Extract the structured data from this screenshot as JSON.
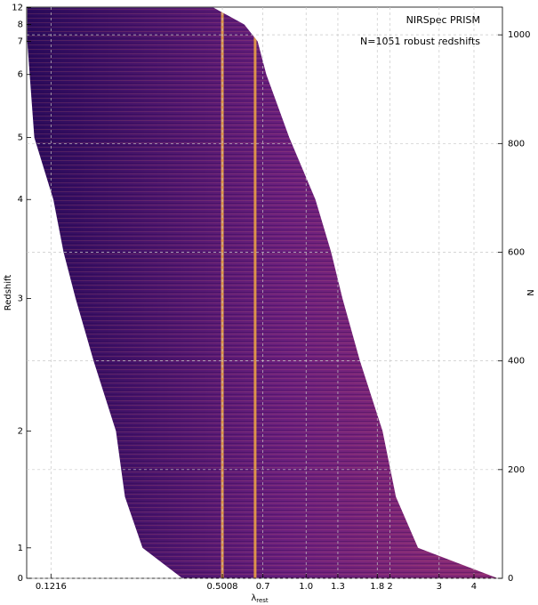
{
  "chart_data": {
    "type": "heatmap",
    "y_label": "Redshift",
    "y2_label": "N",
    "x_label": "λ",
    "x_label_sub": "rest",
    "annotations": [
      "NIRSpec PRISM",
      "N=1051 robust redshifts"
    ],
    "x_scale": "log",
    "xlim": [
      0.0995,
      5.06
    ],
    "xticks": [
      0.1216,
      0.5008,
      0.7,
      {
        "value": 1,
        "label": "1.0"
      },
      1.3,
      1.8,
      2,
      3,
      4
    ],
    "y2lim": [
      0,
      1051
    ],
    "y2ticks": [
      0,
      200,
      400,
      600,
      800,
      1000
    ],
    "yticks": [
      0,
      1,
      2,
      3,
      4,
      5,
      6,
      7,
      8,
      12
    ],
    "grid": true,
    "rows": {
      "n": [
        0,
        56,
        150,
        271,
        400,
        515,
        600,
        697,
        811,
        927,
        988,
        1019,
        1050
      ],
      "redshift": [
        0,
        1,
        1.5,
        2,
        2.5,
        3,
        3.4,
        4,
        5,
        6,
        7,
        8,
        12
      ],
      "lambda_min": [
        0.36,
        0.259,
        0.224,
        0.208,
        0.173,
        0.149,
        0.135,
        0.124,
        0.106,
        0.102,
        0.1,
        0.1,
        0.1
      ],
      "lambda_max": [
        4.87,
        2.52,
        2.1,
        1.88,
        1.56,
        1.35,
        1.23,
        1.08,
        0.87,
        0.72,
        0.67,
        0.6,
        0.466
      ]
    },
    "emission_lines": [
      0.5008,
      0.6565
    ],
    "colors": {
      "low": "#2a0a5c",
      "mid": "#6b1f7e",
      "high": "#8c2a75",
      "line": "#fbb040"
    }
  }
}
